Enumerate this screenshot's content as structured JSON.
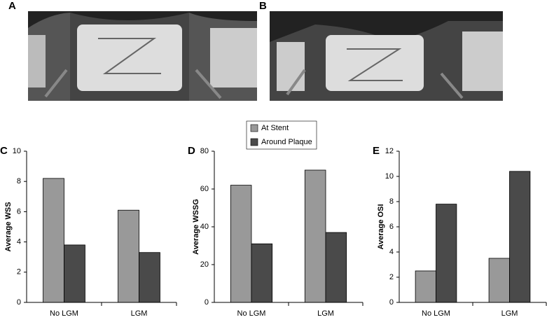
{
  "images": [
    {
      "label": "A"
    },
    {
      "label": "B"
    }
  ],
  "chart_data": [
    {
      "type": "bar",
      "label": "C",
      "y_label": "Average WSS",
      "categories": [
        "No LGM",
        "LGM"
      ],
      "series": [
        {
          "color": "#999999",
          "values": [
            8.2,
            6.1
          ]
        },
        {
          "color": "#4a4a4a",
          "values": [
            3.8,
            3.3
          ]
        }
      ],
      "ylim": [
        0,
        10
      ],
      "yticks": [
        0,
        2,
        4,
        6,
        8,
        10
      ]
    },
    {
      "type": "bar",
      "label": "D",
      "y_label": "Average WSSG",
      "categories": [
        "No LGM",
        "LGM"
      ],
      "series": [
        {
          "name": "At Stent",
          "color": "#999999",
          "values": [
            62,
            70
          ]
        },
        {
          "name": "Around Plaque",
          "color": "#4a4a4a",
          "values": [
            31,
            37
          ]
        }
      ],
      "ylim": [
        0,
        80
      ],
      "yticks": [
        0,
        20,
        40,
        60,
        80
      ]
    },
    {
      "type": "bar",
      "label": "E",
      "y_label": "Average OSI",
      "categories": [
        "No LGM",
        "LGM"
      ],
      "series": [
        {
          "color": "#999999",
          "values": [
            2.5,
            3.5
          ]
        },
        {
          "color": "#4a4a4a",
          "values": [
            7.8,
            10.4
          ]
        }
      ],
      "ylim": [
        0,
        12
      ],
      "yticks": [
        0,
        2,
        4,
        6,
        8,
        10,
        12
      ]
    }
  ]
}
